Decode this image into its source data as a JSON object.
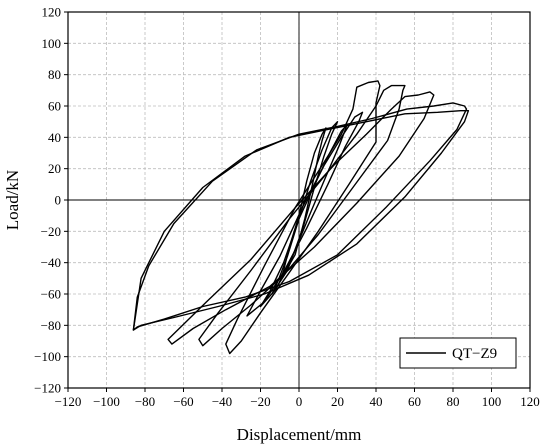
{
  "chart_data": {
    "type": "line",
    "title": "",
    "xlabel": "Displacement/mm",
    "ylabel": "Load/kN",
    "xlim": [
      -120,
      120
    ],
    "ylim": [
      -120,
      120
    ],
    "xticks": [
      -120,
      -100,
      -80,
      -60,
      -40,
      -20,
      0,
      20,
      40,
      60,
      80,
      100,
      120
    ],
    "yticks": [
      -120,
      -100,
      -80,
      -60,
      -40,
      -20,
      0,
      20,
      40,
      60,
      80,
      100,
      120
    ],
    "grid": "dashed",
    "legend_position": "bottom-right",
    "series": [
      {
        "name": "QT−Z9",
        "color": "#000000",
        "loops": [
          [
            [
              -10,
              -52
            ],
            [
              -2,
              -35
            ],
            [
              3,
              -12
            ],
            [
              7,
              10
            ],
            [
              10,
              28
            ],
            [
              12,
              38
            ],
            [
              14,
              46
            ],
            [
              12,
              42
            ],
            [
              8,
              30
            ],
            [
              4,
              12
            ],
            [
              0,
              -10
            ],
            [
              -5,
              -30
            ],
            [
              -8,
              -45
            ],
            [
              -10,
              -52
            ]
          ],
          [
            [
              -14,
              -60
            ],
            [
              -6,
              -45
            ],
            [
              2,
              -18
            ],
            [
              8,
              8
            ],
            [
              13,
              28
            ],
            [
              17,
              42
            ],
            [
              20,
              50
            ],
            [
              17,
              46
            ],
            [
              12,
              32
            ],
            [
              6,
              12
            ],
            [
              0,
              -12
            ],
            [
              -6,
              -36
            ],
            [
              -11,
              -52
            ],
            [
              -14,
              -60
            ]
          ],
          [
            [
              -20,
              -68
            ],
            [
              -12,
              -57
            ],
            [
              -3,
              -35
            ],
            [
              6,
              -8
            ],
            [
              14,
              15
            ],
            [
              21,
              35
            ],
            [
              25,
              48
            ],
            [
              22,
              44
            ],
            [
              16,
              30
            ],
            [
              9,
              12
            ],
            [
              0,
              -12
            ],
            [
              -8,
              -40
            ],
            [
              -15,
              -58
            ],
            [
              -20,
              -68
            ]
          ],
          [
            [
              -27,
              -74
            ],
            [
              -18,
              -65
            ],
            [
              -8,
              -46
            ],
            [
              4,
              -18
            ],
            [
              15,
              10
            ],
            [
              24,
              34
            ],
            [
              31,
              50
            ],
            [
              33,
              56
            ],
            [
              29,
              53
            ],
            [
              22,
              40
            ],
            [
              13,
              22
            ],
            [
              2,
              -4
            ],
            [
              -10,
              -36
            ],
            [
              -20,
              -58
            ],
            [
              -27,
              -74
            ]
          ],
          [
            [
              -38,
              -92
            ],
            [
              -36,
              -98
            ],
            [
              -30,
              -90
            ],
            [
              -20,
              -72
            ],
            [
              -6,
              -48
            ],
            [
              10,
              -20
            ],
            [
              26,
              10
            ],
            [
              40,
              37
            ],
            [
              40,
              62
            ],
            [
              42,
              73
            ],
            [
              41,
              76
            ],
            [
              36,
              75
            ],
            [
              30,
              72
            ],
            [
              28,
              58
            ],
            [
              22,
              42
            ],
            [
              12,
              22
            ],
            [
              -2,
              -5
            ],
            [
              -18,
              -42
            ],
            [
              -32,
              -76
            ],
            [
              -38,
              -92
            ]
          ],
          [
            [
              -52,
              -89
            ],
            [
              -50,
              -93
            ],
            [
              -40,
              -82
            ],
            [
              -25,
              -67
            ],
            [
              -8,
              -48
            ],
            [
              10,
              -22
            ],
            [
              28,
              8
            ],
            [
              46,
              38
            ],
            [
              52,
              58
            ],
            [
              54,
              70
            ],
            [
              55,
              73
            ],
            [
              48,
              73
            ],
            [
              44,
              70
            ],
            [
              40,
              60
            ],
            [
              30,
              42
            ],
            [
              15,
              18
            ],
            [
              -5,
              -12
            ],
            [
              -25,
              -45
            ],
            [
              -42,
              -72
            ],
            [
              -52,
              -89
            ]
          ],
          [
            [
              -68,
              -89
            ],
            [
              -66,
              -92
            ],
            [
              -55,
              -82
            ],
            [
              -38,
              -70
            ],
            [
              -15,
              -55
            ],
            [
              8,
              -30
            ],
            [
              30,
              -2
            ],
            [
              52,
              28
            ],
            [
              65,
              52
            ],
            [
              70,
              67
            ],
            [
              68,
              69
            ],
            [
              62,
              67
            ],
            [
              55,
              66
            ],
            [
              48,
              58
            ],
            [
              35,
              42
            ],
            [
              18,
              22
            ],
            [
              -2,
              -5
            ],
            [
              -25,
              -38
            ],
            [
              -48,
              -65
            ],
            [
              -68,
              -89
            ]
          ],
          [
            [
              -86,
              -83
            ],
            [
              -84,
              -81
            ],
            [
              -70,
              -76
            ],
            [
              -50,
              -68
            ],
            [
              -28,
              -62
            ],
            [
              -5,
              -52
            ],
            [
              20,
              -35
            ],
            [
              45,
              -5
            ],
            [
              68,
              25
            ],
            [
              82,
              45
            ],
            [
              87,
              58
            ],
            [
              86,
              60
            ],
            [
              80,
              62
            ],
            [
              70,
              60
            ],
            [
              56,
              58
            ],
            [
              38,
              52
            ],
            [
              20,
              47
            ],
            [
              0,
              42
            ],
            [
              -22,
              32
            ],
            [
              -45,
              12
            ],
            [
              -65,
              -15
            ],
            [
              -78,
              -42
            ],
            [
              -84,
              -62
            ],
            [
              -86,
              -83
            ]
          ],
          [
            [
              -86,
              -83
            ],
            [
              -82,
              -80
            ],
            [
              -65,
              -75
            ],
            [
              -42,
              -68
            ],
            [
              -18,
              -60
            ],
            [
              5,
              -48
            ],
            [
              30,
              -28
            ],
            [
              55,
              2
            ],
            [
              74,
              30
            ],
            [
              86,
              50
            ],
            [
              88,
              57
            ],
            [
              84,
              57
            ],
            [
              72,
              56
            ],
            [
              55,
              55
            ],
            [
              35,
              50
            ],
            [
              15,
              45
            ],
            [
              -5,
              40
            ],
            [
              -28,
              28
            ],
            [
              -50,
              8
            ],
            [
              -70,
              -20
            ],
            [
              -82,
              -50
            ],
            [
              -86,
              -83
            ]
          ]
        ]
      }
    ]
  }
}
